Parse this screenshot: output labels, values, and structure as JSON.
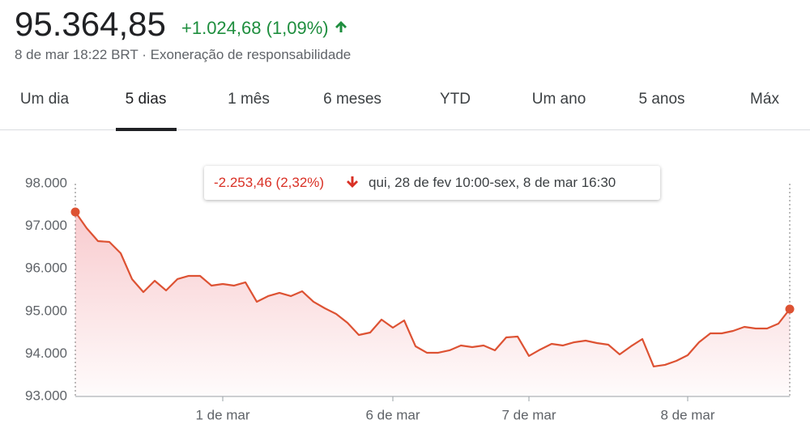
{
  "header": {
    "price": "95.364,85",
    "change": "+1.024,68 (1,09%)",
    "timestamp": "8 de mar 18:22 BRT",
    "separator": "·",
    "disclaimer": "Exoneração de responsabilidade"
  },
  "tabs": [
    "Um dia",
    "5 dias",
    "1 mês",
    "6 meses",
    "YTD",
    "Um ano",
    "5 anos",
    "Máx"
  ],
  "selected_tab": 1,
  "chart_data": {
    "type": "line",
    "tooltip": {
      "change": "-2.253,46 (2,32%)",
      "range": "qui, 28 de fev 10:00-sex, 8 de mar 16:30"
    },
    "categories": [
      null,
      null,
      null,
      null,
      null,
      null,
      null,
      null,
      null,
      null,
      null,
      null,
      null,
      "1 de mar",
      null,
      null,
      null,
      null,
      null,
      null,
      null,
      null,
      null,
      null,
      null,
      null,
      null,
      null,
      "6 de mar",
      null,
      null,
      null,
      null,
      null,
      null,
      null,
      null,
      null,
      null,
      null,
      "7 de mar",
      null,
      null,
      null,
      null,
      null,
      null,
      null,
      null,
      null,
      null,
      null,
      null,
      null,
      "8 de mar",
      null,
      null,
      null,
      null,
      null,
      null,
      null,
      null,
      null
    ],
    "values": [
      97335,
      96954,
      96650,
      96631,
      96365,
      95757,
      95453,
      95719,
      95491,
      95757,
      95833,
      95833,
      95605,
      95643,
      95605,
      95681,
      95225,
      95358,
      95434,
      95358,
      95472,
      95225,
      95072,
      94939,
      94730,
      94445,
      94502,
      94806,
      94616,
      94787,
      94179,
      94027,
      94027,
      94084,
      94198,
      94160,
      94198,
      94084,
      94388,
      94407,
      93951,
      94103,
      94236,
      94198,
      94274,
      94312,
      94255,
      94217,
      93989,
      94179,
      94350,
      93704,
      93742,
      93837,
      93970,
      94274,
      94483,
      94483,
      94540,
      94635,
      94597,
      94597,
      94711,
      95053
    ],
    "color": "#dd5233",
    "ylim": [
      93000,
      98000
    ],
    "yticks": [
      {
        "value": 93000,
        "label": "93.000"
      },
      {
        "value": 94000,
        "label": "94.000"
      },
      {
        "value": 95000,
        "label": "95.000"
      },
      {
        "value": 96000,
        "label": "96.000"
      },
      {
        "value": 97000,
        "label": "97.000"
      },
      {
        "value": 98000,
        "label": "98.000"
      }
    ],
    "grid": false
  }
}
